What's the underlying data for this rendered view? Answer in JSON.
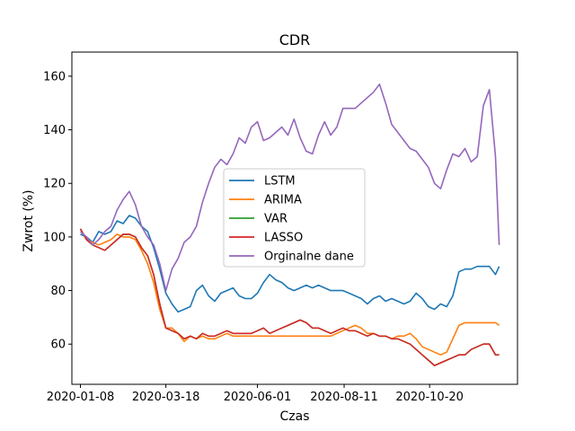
{
  "chart_data": {
    "type": "line",
    "title": "CDR",
    "xlabel": "Czas",
    "ylabel": "Zwrot (%)",
    "xlim": [
      "2020-01-01",
      "2020-12-31"
    ],
    "ylim": [
      45,
      169
    ],
    "xticks": [
      "2020-01-08",
      "2020-03-18",
      "2020-06-01",
      "2020-08-11",
      "2020-10-20"
    ],
    "yticks": [
      60,
      80,
      100,
      120,
      140,
      160
    ],
    "legend_position": "center",
    "grid": false,
    "series": [
      {
        "name": " LSTM",
        "color": "#1f77b4",
        "x": [
          "2020-01-08",
          "2020-01-13",
          "2020-01-18",
          "2020-01-23",
          "2020-01-28",
          "2020-02-02",
          "2020-02-07",
          "2020-02-12",
          "2020-02-17",
          "2020-02-22",
          "2020-02-27",
          "2020-03-03",
          "2020-03-08",
          "2020-03-13",
          "2020-03-18",
          "2020-03-23",
          "2020-03-28",
          "2020-04-02",
          "2020-04-07",
          "2020-04-12",
          "2020-04-17",
          "2020-04-22",
          "2020-04-27",
          "2020-05-02",
          "2020-05-07",
          "2020-05-12",
          "2020-05-17",
          "2020-05-22",
          "2020-05-27",
          "2020-06-01",
          "2020-06-06",
          "2020-06-11",
          "2020-06-16",
          "2020-06-21",
          "2020-06-26",
          "2020-07-01",
          "2020-07-06",
          "2020-07-11",
          "2020-07-16",
          "2020-07-21",
          "2020-07-26",
          "2020-07-31",
          "2020-08-05",
          "2020-08-10",
          "2020-08-15",
          "2020-08-20",
          "2020-08-25",
          "2020-08-30",
          "2020-09-04",
          "2020-09-09",
          "2020-09-14",
          "2020-09-19",
          "2020-09-24",
          "2020-09-29",
          "2020-10-04",
          "2020-10-09",
          "2020-10-14",
          "2020-10-19",
          "2020-10-24",
          "2020-10-29",
          "2020-11-03",
          "2020-11-08",
          "2020-11-13",
          "2020-11-18",
          "2020-11-23",
          "2020-11-28",
          "2020-12-03",
          "2020-12-08",
          "2020-12-13",
          "2020-12-16"
        ],
        "y": [
          101,
          100,
          98,
          102,
          101,
          102,
          106,
          105,
          108,
          107,
          104,
          102,
          96,
          88,
          79,
          75,
          72,
          73,
          74,
          80,
          82,
          78,
          76,
          79,
          80,
          81,
          78,
          77,
          77,
          79,
          83,
          86,
          84,
          83,
          81,
          80,
          81,
          82,
          81,
          82,
          81,
          80,
          80,
          80,
          79,
          78,
          77,
          75,
          77,
          78,
          76,
          77,
          76,
          75,
          76,
          79,
          77,
          74,
          73,
          75,
          74,
          78,
          87,
          88,
          88,
          89,
          89,
          89,
          86,
          89
        ]
      },
      {
        "name": "ARIMA",
        "color": "#ff7f0e",
        "x": [
          "2020-01-08",
          "2020-01-13",
          "2020-01-18",
          "2020-01-23",
          "2020-01-28",
          "2020-02-02",
          "2020-02-07",
          "2020-02-12",
          "2020-02-17",
          "2020-02-22",
          "2020-02-27",
          "2020-03-03",
          "2020-03-08",
          "2020-03-13",
          "2020-03-18",
          "2020-03-23",
          "2020-03-28",
          "2020-04-02",
          "2020-04-07",
          "2020-04-12",
          "2020-04-17",
          "2020-04-22",
          "2020-04-27",
          "2020-05-02",
          "2020-05-07",
          "2020-05-12",
          "2020-05-17",
          "2020-05-22",
          "2020-05-27",
          "2020-06-01",
          "2020-06-06",
          "2020-06-11",
          "2020-06-16",
          "2020-06-21",
          "2020-06-26",
          "2020-07-01",
          "2020-07-06",
          "2020-07-11",
          "2020-07-16",
          "2020-07-21",
          "2020-07-26",
          "2020-07-31",
          "2020-08-05",
          "2020-08-10",
          "2020-08-15",
          "2020-08-20",
          "2020-08-25",
          "2020-08-30",
          "2020-09-04",
          "2020-09-09",
          "2020-09-14",
          "2020-09-19",
          "2020-09-24",
          "2020-09-29",
          "2020-10-04",
          "2020-10-09",
          "2020-10-14",
          "2020-10-19",
          "2020-10-24",
          "2020-10-29",
          "2020-11-03",
          "2020-11-08",
          "2020-11-13",
          "2020-11-18",
          "2020-11-23",
          "2020-11-28",
          "2020-12-03",
          "2020-12-08",
          "2020-12-13",
          "2020-12-16"
        ],
        "y": [
          103,
          99,
          98,
          97,
          98,
          99,
          101,
          100,
          100,
          99,
          95,
          90,
          83,
          73,
          66,
          66,
          64,
          61,
          63,
          62,
          63,
          62,
          62,
          63,
          64,
          63,
          63,
          63,
          63,
          63,
          63,
          63,
          63,
          63,
          63,
          63,
          63,
          63,
          63,
          63,
          63,
          63,
          64,
          65,
          66,
          67,
          66,
          64,
          64,
          63,
          63,
          62,
          63,
          63,
          64,
          62,
          59,
          58,
          57,
          56,
          57,
          62,
          67,
          68,
          68,
          68,
          68,
          68,
          68,
          67
        ]
      },
      {
        "name": "VAR",
        "color": "#2ca02c",
        "x": [
          "2020-01-08",
          "2020-01-13",
          "2020-01-18",
          "2020-01-23",
          "2020-01-28",
          "2020-02-02",
          "2020-02-07",
          "2020-02-12",
          "2020-02-17",
          "2020-02-22",
          "2020-02-27",
          "2020-03-03",
          "2020-03-08",
          "2020-03-13",
          "2020-03-18",
          "2020-03-23",
          "2020-03-28",
          "2020-04-02",
          "2020-04-07",
          "2020-04-12",
          "2020-04-17",
          "2020-04-22",
          "2020-04-27",
          "2020-05-02",
          "2020-05-07",
          "2020-05-12",
          "2020-05-17",
          "2020-05-22",
          "2020-05-27",
          "2020-06-01",
          "2020-06-06",
          "2020-06-11",
          "2020-06-16",
          "2020-06-21",
          "2020-06-26",
          "2020-07-01",
          "2020-07-06",
          "2020-07-11",
          "2020-07-16",
          "2020-07-21",
          "2020-07-26",
          "2020-07-31",
          "2020-08-05",
          "2020-08-10",
          "2020-08-15",
          "2020-08-20",
          "2020-08-25",
          "2020-08-30",
          "2020-09-04",
          "2020-09-09",
          "2020-09-14",
          "2020-09-19",
          "2020-09-24",
          "2020-09-29",
          "2020-10-04",
          "2020-10-09",
          "2020-10-14",
          "2020-10-19",
          "2020-10-24",
          "2020-10-29",
          "2020-11-03",
          "2020-11-08",
          "2020-11-13",
          "2020-11-18",
          "2020-11-23",
          "2020-11-28",
          "2020-12-03",
          "2020-12-08",
          "2020-12-13",
          "2020-12-16"
        ],
        "y": [
          103,
          99,
          97,
          96,
          95,
          97,
          99,
          101,
          101,
          100,
          96,
          93,
          86,
          75,
          66,
          65,
          64,
          62,
          63,
          62,
          64,
          63,
          63,
          64,
          65,
          64,
          64,
          64,
          64,
          65,
          66,
          64,
          65,
          66,
          67,
          68,
          69,
          68,
          66,
          66,
          65,
          64,
          65,
          66,
          65,
          65,
          64,
          63,
          64,
          63,
          63,
          62,
          62,
          61,
          60,
          58,
          56,
          54,
          52,
          53,
          54,
          55,
          56,
          56,
          58,
          59,
          60,
          60,
          56,
          56
        ]
      },
      {
        "name": "LASSO",
        "color": "#d62728",
        "x": [
          "2020-01-08",
          "2020-01-13",
          "2020-01-18",
          "2020-01-23",
          "2020-01-28",
          "2020-02-02",
          "2020-02-07",
          "2020-02-12",
          "2020-02-17",
          "2020-02-22",
          "2020-02-27",
          "2020-03-03",
          "2020-03-08",
          "2020-03-13",
          "2020-03-18",
          "2020-03-23",
          "2020-03-28",
          "2020-04-02",
          "2020-04-07",
          "2020-04-12",
          "2020-04-17",
          "2020-04-22",
          "2020-04-27",
          "2020-05-02",
          "2020-05-07",
          "2020-05-12",
          "2020-05-17",
          "2020-05-22",
          "2020-05-27",
          "2020-06-01",
          "2020-06-06",
          "2020-06-11",
          "2020-06-16",
          "2020-06-21",
          "2020-06-26",
          "2020-07-01",
          "2020-07-06",
          "2020-07-11",
          "2020-07-16",
          "2020-07-21",
          "2020-07-26",
          "2020-07-31",
          "2020-08-05",
          "2020-08-10",
          "2020-08-15",
          "2020-08-20",
          "2020-08-25",
          "2020-08-30",
          "2020-09-04",
          "2020-09-09",
          "2020-09-14",
          "2020-09-19",
          "2020-09-24",
          "2020-09-29",
          "2020-10-04",
          "2020-10-09",
          "2020-10-14",
          "2020-10-19",
          "2020-10-24",
          "2020-10-29",
          "2020-11-03",
          "2020-11-08",
          "2020-11-13",
          "2020-11-18",
          "2020-11-23",
          "2020-11-28",
          "2020-12-03",
          "2020-12-08",
          "2020-12-13",
          "2020-12-16"
        ],
        "y": [
          103,
          99,
          97,
          96,
          95,
          97,
          99,
          101,
          101,
          100,
          96,
          93,
          86,
          75,
          66,
          65,
          64,
          62,
          63,
          62,
          64,
          63,
          63,
          64,
          65,
          64,
          64,
          64,
          64,
          65,
          66,
          64,
          65,
          66,
          67,
          68,
          69,
          68,
          66,
          66,
          65,
          64,
          65,
          66,
          65,
          65,
          64,
          63,
          64,
          63,
          63,
          62,
          62,
          61,
          60,
          58,
          56,
          54,
          52,
          53,
          54,
          55,
          56,
          56,
          58,
          59,
          60,
          60,
          56,
          56
        ]
      },
      {
        "name": "Orginalne dane",
        "color": "#9467bd",
        "x": [
          "2020-01-08",
          "2020-01-13",
          "2020-01-18",
          "2020-01-23",
          "2020-01-28",
          "2020-02-02",
          "2020-02-07",
          "2020-02-12",
          "2020-02-17",
          "2020-02-22",
          "2020-02-27",
          "2020-03-03",
          "2020-03-08",
          "2020-03-13",
          "2020-03-18",
          "2020-03-23",
          "2020-03-28",
          "2020-04-02",
          "2020-04-07",
          "2020-04-12",
          "2020-04-17",
          "2020-04-22",
          "2020-04-27",
          "2020-05-02",
          "2020-05-07",
          "2020-05-12",
          "2020-05-17",
          "2020-05-22",
          "2020-05-27",
          "2020-06-01",
          "2020-06-06",
          "2020-06-11",
          "2020-06-16",
          "2020-06-21",
          "2020-06-26",
          "2020-07-01",
          "2020-07-06",
          "2020-07-11",
          "2020-07-16",
          "2020-07-21",
          "2020-07-26",
          "2020-07-31",
          "2020-08-05",
          "2020-08-10",
          "2020-08-15",
          "2020-08-20",
          "2020-08-25",
          "2020-08-30",
          "2020-09-04",
          "2020-09-09",
          "2020-09-14",
          "2020-09-19",
          "2020-09-24",
          "2020-09-29",
          "2020-10-04",
          "2020-10-09",
          "2020-10-14",
          "2020-10-19",
          "2020-10-24",
          "2020-10-29",
          "2020-11-03",
          "2020-11-08",
          "2020-11-13",
          "2020-11-18",
          "2020-11-23",
          "2020-11-28",
          "2020-12-03",
          "2020-12-08",
          "2020-12-13",
          "2020-12-16"
        ],
        "y": [
          102,
          100,
          97,
          99,
          102,
          104,
          110,
          114,
          117,
          112,
          104,
          100,
          97,
          90,
          80,
          88,
          92,
          98,
          100,
          104,
          113,
          120,
          126,
          129,
          127,
          131,
          137,
          135,
          141,
          143,
          136,
          137,
          139,
          141,
          138,
          144,
          137,
          132,
          131,
          138,
          143,
          138,
          141,
          148,
          148,
          148,
          150,
          152,
          154,
          157,
          150,
          142,
          139,
          136,
          133,
          132,
          129,
          126,
          120,
          118,
          125,
          131,
          130,
          133,
          128,
          130,
          149,
          155,
          130,
          97
        ]
      }
    ]
  }
}
